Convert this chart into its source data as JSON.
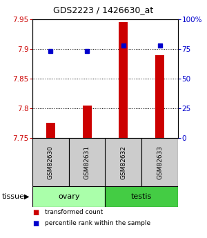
{
  "title": "GDS2223 / 1426630_at",
  "samples": [
    "GSM82630",
    "GSM82631",
    "GSM82632",
    "GSM82633"
  ],
  "tissue_groups": [
    {
      "label": "ovary",
      "samples": [
        "GSM82630",
        "GSM82631"
      ],
      "color": "#aaffaa"
    },
    {
      "label": "testis",
      "samples": [
        "GSM82632",
        "GSM82633"
      ],
      "color": "#44cc44"
    }
  ],
  "bar_values": [
    7.775,
    7.805,
    7.945,
    7.89
  ],
  "percentile_values": [
    73,
    73,
    78,
    78
  ],
  "bar_bottom": 7.75,
  "ylim_left": [
    7.75,
    7.95
  ],
  "ylim_right": [
    0,
    100
  ],
  "yticks_left": [
    7.75,
    7.8,
    7.85,
    7.9,
    7.95
  ],
  "ytick_labels_left": [
    "7.75",
    "7.8",
    "7.85",
    "7.9",
    "7.95"
  ],
  "yticks_right": [
    0,
    25,
    50,
    75,
    100
  ],
  "ytick_labels_right": [
    "0",
    "25",
    "50",
    "75",
    "100%"
  ],
  "bar_color": "#cc0000",
  "percentile_color": "#0000cc",
  "left_tick_color": "#cc0000",
  "right_tick_color": "#0000cc",
  "grid_color": "#000000",
  "tissue_label": "tissue",
  "legend_bar_label": "transformed count",
  "legend_pct_label": "percentile rank within the sample",
  "sample_area_facecolor": "#cccccc",
  "bar_width": 0.25
}
